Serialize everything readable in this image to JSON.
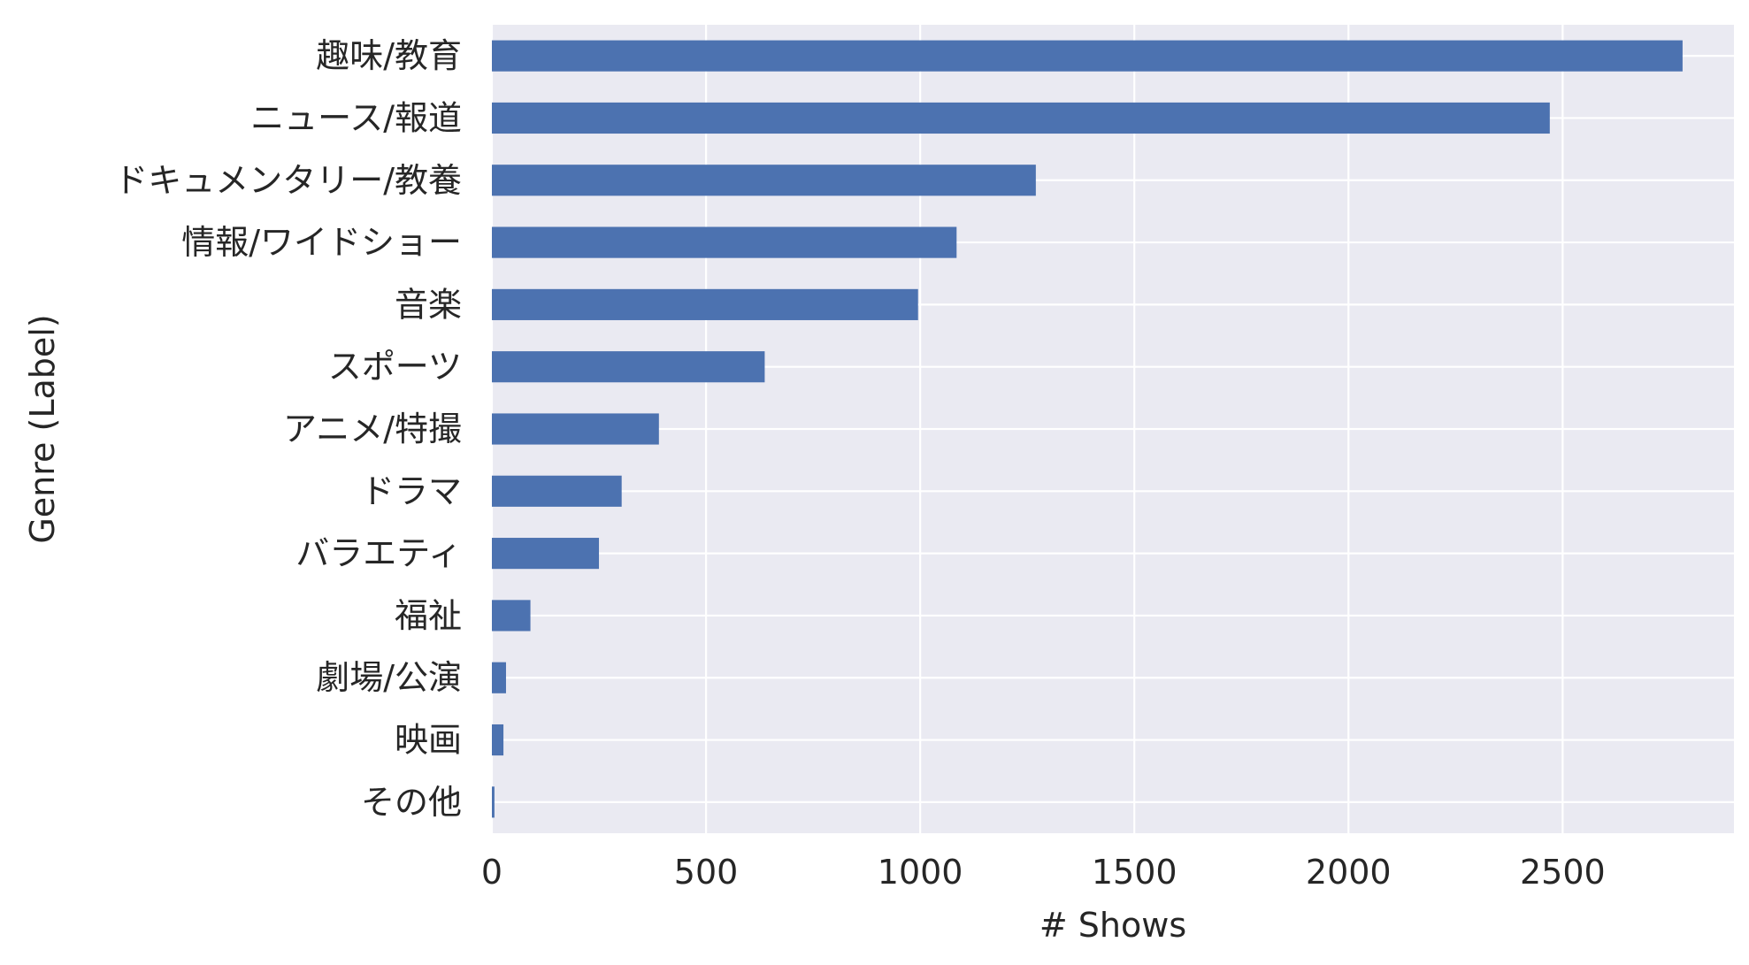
{
  "chart_data": {
    "type": "bar",
    "orientation": "horizontal",
    "categories": [
      "趣味/教育",
      "ニュース/報道",
      "ドキュメンタリー/教養",
      "情報/ワイドショー",
      "音楽",
      "スポーツ",
      "アニメ/特撮",
      "ドラマ",
      "バラエティ",
      "福祉",
      "劇場/公演",
      "映画",
      "その他"
    ],
    "values": [
      2780,
      2470,
      1270,
      1085,
      995,
      637,
      390,
      303,
      250,
      90,
      33,
      27,
      6
    ],
    "xlabel": "# Shows",
    "ylabel": "Genre (Label)",
    "xlim": [
      0,
      2900
    ],
    "xticks": [
      0,
      500,
      1000,
      1500,
      2000,
      2500
    ],
    "xtick_labels": [
      "0",
      "500",
      "1000",
      "1500",
      "2000",
      "2500"
    ],
    "grid": true,
    "colors": {
      "bar": "#4c72b0",
      "plot_background": "#eaeaf2",
      "grid": "#ffffff",
      "text": "#262626"
    }
  }
}
